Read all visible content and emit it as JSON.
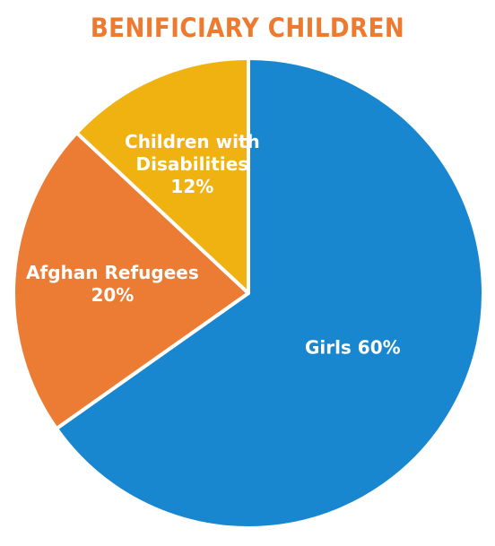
{
  "chart_data": {
    "type": "pie",
    "title": "BENIFICIARY CHILDREN",
    "title_color": "#ee7a30",
    "label_color": "#ffffff",
    "slices": [
      {
        "label_lines": [
          "Girls 60%"
        ],
        "value": 60,
        "color": "#1887d0"
      },
      {
        "label_lines": [
          "Afghan Refugees",
          "20%"
        ],
        "value": 20,
        "color": "#ec7c34"
      },
      {
        "label_lines": [
          "Children with",
          "Disabilities",
          "12%"
        ],
        "value": 12,
        "color": "#efb210"
      }
    ]
  }
}
